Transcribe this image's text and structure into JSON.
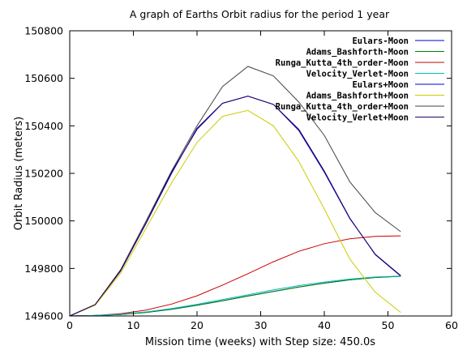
{
  "chart_data": {
    "type": "line",
    "title": "A graph of Earths Orbit radius for the period 1 year",
    "xlabel": "Mission time (weeks) with Step size: 450.0s",
    "ylabel": "Orbit Radius (meters)",
    "xlim": [
      0,
      60
    ],
    "ylim": [
      149600,
      150800
    ],
    "xticks": [
      0,
      10,
      20,
      30,
      40,
      50,
      60
    ],
    "yticks": [
      149600,
      149800,
      150000,
      150200,
      150400,
      150600,
      150800
    ],
    "grid": false,
    "legend_position": "top-right",
    "x": [
      0,
      4,
      8,
      12,
      16,
      20,
      24,
      28,
      32,
      36,
      40,
      44,
      48,
      52
    ],
    "series": [
      {
        "name": "Eulars-Moon",
        "color": "#0000cc",
        "values": [
          149600,
          149602,
          149606,
          149615,
          149628,
          149645,
          149664,
          149684,
          149703,
          149722,
          149738,
          149752,
          149762,
          149767
        ]
      },
      {
        "name": "Adams_Bashforth-Moon",
        "color": "#008000",
        "values": [
          149600,
          149602,
          149606,
          149615,
          149628,
          149645,
          149664,
          149684,
          149703,
          149722,
          149738,
          149752,
          149762,
          149767
        ]
      },
      {
        "name": "Runga_Kutta_4th_order-Moon",
        "color": "#cc0000",
        "values": [
          149600,
          149602,
          149610,
          149625,
          149650,
          149685,
          149730,
          149778,
          149828,
          149872,
          149904,
          149925,
          149935,
          149937
        ]
      },
      {
        "name": "Velocity_Verlet-Moon",
        "color": "#00bbbb",
        "values": [
          149600,
          149602,
          149607,
          149617,
          149631,
          149649,
          149669,
          149689,
          149710,
          149728,
          149743,
          149755,
          149764,
          149768
        ]
      },
      {
        "name": "Eulars+Moon",
        "color": "#0000cc",
        "values": [
          149600,
          149648,
          149790,
          149990,
          150200,
          150390,
          150495,
          150525,
          150490,
          150380,
          150205,
          150010,
          149860,
          149770
        ]
      },
      {
        "name": "Adams_Bashforth+Moon",
        "color": "#cccc00",
        "values": [
          149600,
          149645,
          149780,
          149970,
          150160,
          150330,
          150440,
          150465,
          150400,
          150250,
          150050,
          149840,
          149700,
          149615
        ]
      },
      {
        "name": "Runga_Kutta_4th_order+Moon",
        "color": "#444444",
        "values": [
          149600,
          149648,
          149795,
          150000,
          150210,
          150400,
          150565,
          150650,
          150610,
          150500,
          150360,
          150165,
          150035,
          149955
        ]
      },
      {
        "name": "Velocity_Verlet+Moon",
        "color": "#220066",
        "values": [
          149600,
          149648,
          149790,
          149992,
          150205,
          150385,
          150495,
          150525,
          150490,
          150385,
          150210,
          150012,
          149858,
          149768
        ]
      }
    ]
  }
}
